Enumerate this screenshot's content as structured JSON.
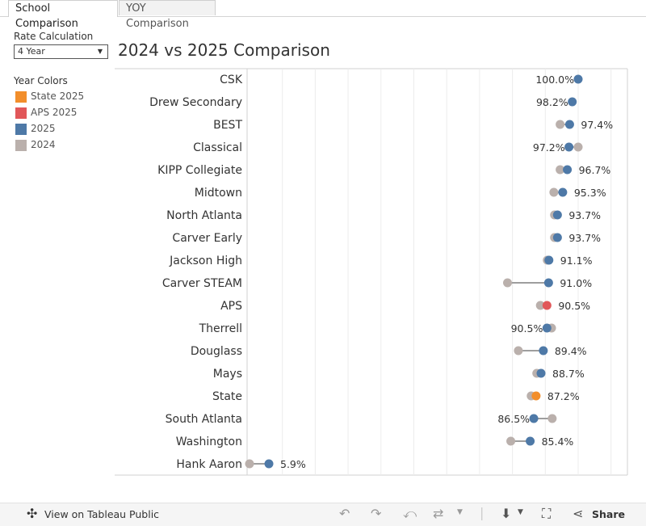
{
  "tabs": [
    {
      "label": "School Comparison"
    },
    {
      "label": "YOY Comparison"
    }
  ],
  "filter": {
    "label": "Rate Calculation",
    "value": "4 Year"
  },
  "legend": {
    "title": "Year Colors",
    "items": [
      {
        "label": "State 2025",
        "color": "#f28e2b"
      },
      {
        "label": "APS 2025",
        "color": "#e15759"
      },
      {
        "label": "2025",
        "color": "#4e79a7"
      },
      {
        "label": "2024",
        "color": "#bab0ac"
      }
    ]
  },
  "chart_title": "2024 vs 2025 Comparison",
  "chart_data": {
    "type": "dumbbell",
    "title": "2024 vs 2025 Comparison",
    "xlim": [
      0,
      115
    ],
    "grid": true,
    "rows": [
      {
        "name": "CSK",
        "v2025": 100.0,
        "v2024": null,
        "label": "100.0%",
        "label_side": "left",
        "color2025": "#4e79a7"
      },
      {
        "name": "Drew Secondary",
        "v2025": 98.2,
        "v2024": null,
        "label": "98.2%",
        "label_side": "left",
        "color2025": "#4e79a7"
      },
      {
        "name": "BEST",
        "v2025": 97.4,
        "v2024": 94.5,
        "label": "97.4%",
        "label_side": "right",
        "color2025": "#4e79a7"
      },
      {
        "name": "Classical",
        "v2025": 97.2,
        "v2024": 100.0,
        "label": "97.2%",
        "label_side": "left",
        "color2025": "#4e79a7"
      },
      {
        "name": "KIPP Collegiate",
        "v2025": 96.7,
        "v2024": 94.5,
        "label": "96.7%",
        "label_side": "right",
        "color2025": "#4e79a7"
      },
      {
        "name": "Midtown",
        "v2025": 95.3,
        "v2024": 92.6,
        "label": "95.3%",
        "label_side": "right",
        "color2025": "#4e79a7"
      },
      {
        "name": "North Atlanta",
        "v2025": 93.7,
        "v2024": 92.8,
        "label": "93.7%",
        "label_side": "right",
        "color2025": "#4e79a7"
      },
      {
        "name": "Carver Early",
        "v2025": 93.7,
        "v2024": 92.8,
        "label": "93.7%",
        "label_side": "right",
        "color2025": "#4e79a7"
      },
      {
        "name": "Jackson High",
        "v2025": 91.1,
        "v2024": 90.6,
        "label": "91.1%",
        "label_side": "right",
        "color2025": "#4e79a7"
      },
      {
        "name": "Carver STEAM",
        "v2025": 91.0,
        "v2024": 78.5,
        "label": "91.0%",
        "label_side": "right",
        "color2025": "#4e79a7"
      },
      {
        "name": "APS",
        "v2025": 90.5,
        "v2024": 88.5,
        "label": "90.5%",
        "label_side": "right",
        "color2025": "#e15759"
      },
      {
        "name": "Therrell",
        "v2025": 90.5,
        "v2024": 91.9,
        "label": "90.5%",
        "label_side": "left",
        "color2025": "#4e79a7"
      },
      {
        "name": "Douglass",
        "v2025": 89.4,
        "v2024": 81.8,
        "label": "89.4%",
        "label_side": "right",
        "color2025": "#4e79a7"
      },
      {
        "name": "Mays",
        "v2025": 88.7,
        "v2024": 87.4,
        "label": "88.7%",
        "label_side": "right",
        "color2025": "#4e79a7"
      },
      {
        "name": "State",
        "v2025": 87.2,
        "v2024": 85.7,
        "label": "87.2%",
        "label_side": "right",
        "color2025": "#f28e2b"
      },
      {
        "name": "South Atlanta",
        "v2025": 86.5,
        "v2024": 92.1,
        "label": "86.5%",
        "label_side": "left",
        "color2025": "#4e79a7"
      },
      {
        "name": "Washington",
        "v2025": 85.4,
        "v2024": 79.5,
        "label": "85.4%",
        "label_side": "right",
        "color2025": "#4e79a7"
      },
      {
        "name": "Hank Aaron",
        "v2025": 5.9,
        "v2024": 0.0,
        "label": "5.9%",
        "label_side": "right",
        "color2025": "#4e79a7"
      }
    ]
  },
  "footer": {
    "view_label": "View on Tableau Public",
    "share_label": "Share"
  }
}
